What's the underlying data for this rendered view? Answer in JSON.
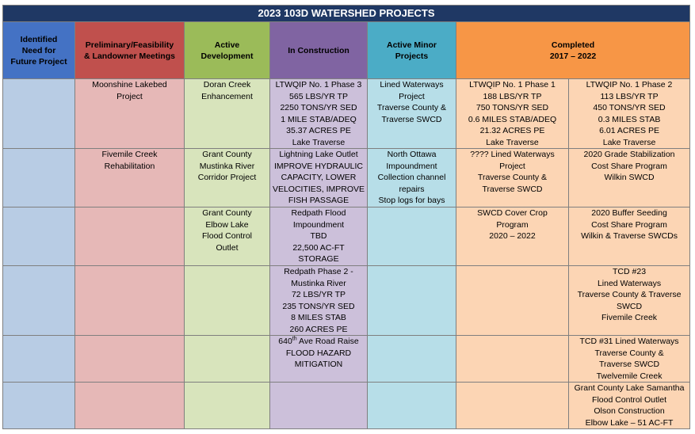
{
  "title": "2023 103D WATERSHED PROJECTS",
  "headers": {
    "identified": [
      "Identified",
      "Need for",
      "Future Project"
    ],
    "preliminary": [
      "Preliminary/Feasibility",
      "& Landowner Meetings"
    ],
    "active_dev": [
      "Active",
      "Development"
    ],
    "construction": [
      "In Construction"
    ],
    "minor": [
      "Active Minor",
      "Projects"
    ],
    "completed": [
      "Completed",
      "2017 – 2022"
    ]
  },
  "rows": [
    {
      "preliminary": [
        "Moonshine Lakebed",
        "Project"
      ],
      "active_dev": [
        "Doran Creek",
        "Enhancement"
      ],
      "construction": [
        "LTWQIP No. 1 Phase 3",
        "565 LBS/YR TP",
        "2250 TONS/YR SED",
        "1 MILE STAB/ADEQ",
        "35.37 ACRES PE",
        "Lake Traverse"
      ],
      "minor": [
        "Lined Waterways",
        "Project",
        "Traverse County &",
        "Traverse SWCD"
      ],
      "completed_a": [
        "LTWQIP No. 1 Phase 1",
        "188 LBS/YR TP",
        "750 TONS/YR SED",
        "0.6 MILES STAB/ADEQ",
        "21.32 ACRES PE",
        "Lake Traverse"
      ],
      "completed_b": [
        "LTWQIP No. 1 Phase 2",
        "113 LBS/YR TP",
        "450 TONS/YR SED",
        "0.3 MILES STAB",
        "6.01 ACRES PE",
        "Lake Traverse"
      ]
    },
    {
      "preliminary": [
        "Fivemile Creek",
        "Rehabilitation"
      ],
      "active_dev": [
        "Grant County",
        "Mustinka River",
        "Corridor Project"
      ],
      "construction": [
        "Lightning Lake Outlet",
        "IMPROVE HYDRAULIC",
        "CAPACITY, LOWER",
        "VELOCITIES, IMPROVE",
        "FISH PASSAGE"
      ],
      "minor": [
        "North Ottawa",
        "Impoundment",
        "Collection channel",
        "repairs",
        "Stop logs for bays"
      ],
      "completed_a": [
        "???? Lined Waterways",
        "Project",
        "Traverse County &",
        "Traverse SWCD"
      ],
      "completed_b": [
        "2020 Grade Stabilization",
        "Cost Share Program",
        "Wilkin SWCD"
      ]
    },
    {
      "preliminary": [],
      "active_dev": [
        "Grant County",
        "Elbow Lake",
        "Flood Control",
        "Outlet"
      ],
      "construction": [
        "Redpath Flood",
        "Impoundment",
        "TBD",
        "22,500 AC-FT",
        "STORAGE"
      ],
      "minor": [],
      "completed_a": [
        "SWCD Cover Crop",
        "Program",
        "2020 – 2022"
      ],
      "completed_b": [
        "2020 Buffer Seeding",
        "Cost Share Program",
        "Wilkin & Traverse SWCDs"
      ]
    },
    {
      "preliminary": [],
      "active_dev": [],
      "construction": [
        "Redpath Phase 2 -",
        "Mustinka River",
        "72 LBS/YR TP",
        "235 TONS/YR SED",
        "8 MILES STAB",
        "260 ACRES PE"
      ],
      "minor": [],
      "completed_a": [],
      "completed_b": [
        "TCD #23",
        "Lined Waterways",
        "Traverse County & Traverse",
        "SWCD",
        "Fivemile Creek"
      ]
    },
    {
      "preliminary": [],
      "active_dev": [],
      "construction_road": {
        "num": "640",
        "sup": "th",
        "rest": " Ave Road Raise"
      },
      "construction": [
        "FLOOD HAZARD",
        "MITIGATION"
      ],
      "minor": [],
      "completed_a": [],
      "completed_b": [
        "TCD #31 Lined Waterways",
        "Traverse County &",
        "Traverse SWCD",
        "Twelvemile Creek"
      ]
    },
    {
      "preliminary": [],
      "active_dev": [],
      "construction": [],
      "minor": [],
      "completed_a": [],
      "completed_b": [
        "Grant County Lake Samantha",
        "Flood Control Outlet",
        "Olson Construction",
        "Elbow Lake – 51 AC-FT"
      ]
    }
  ]
}
